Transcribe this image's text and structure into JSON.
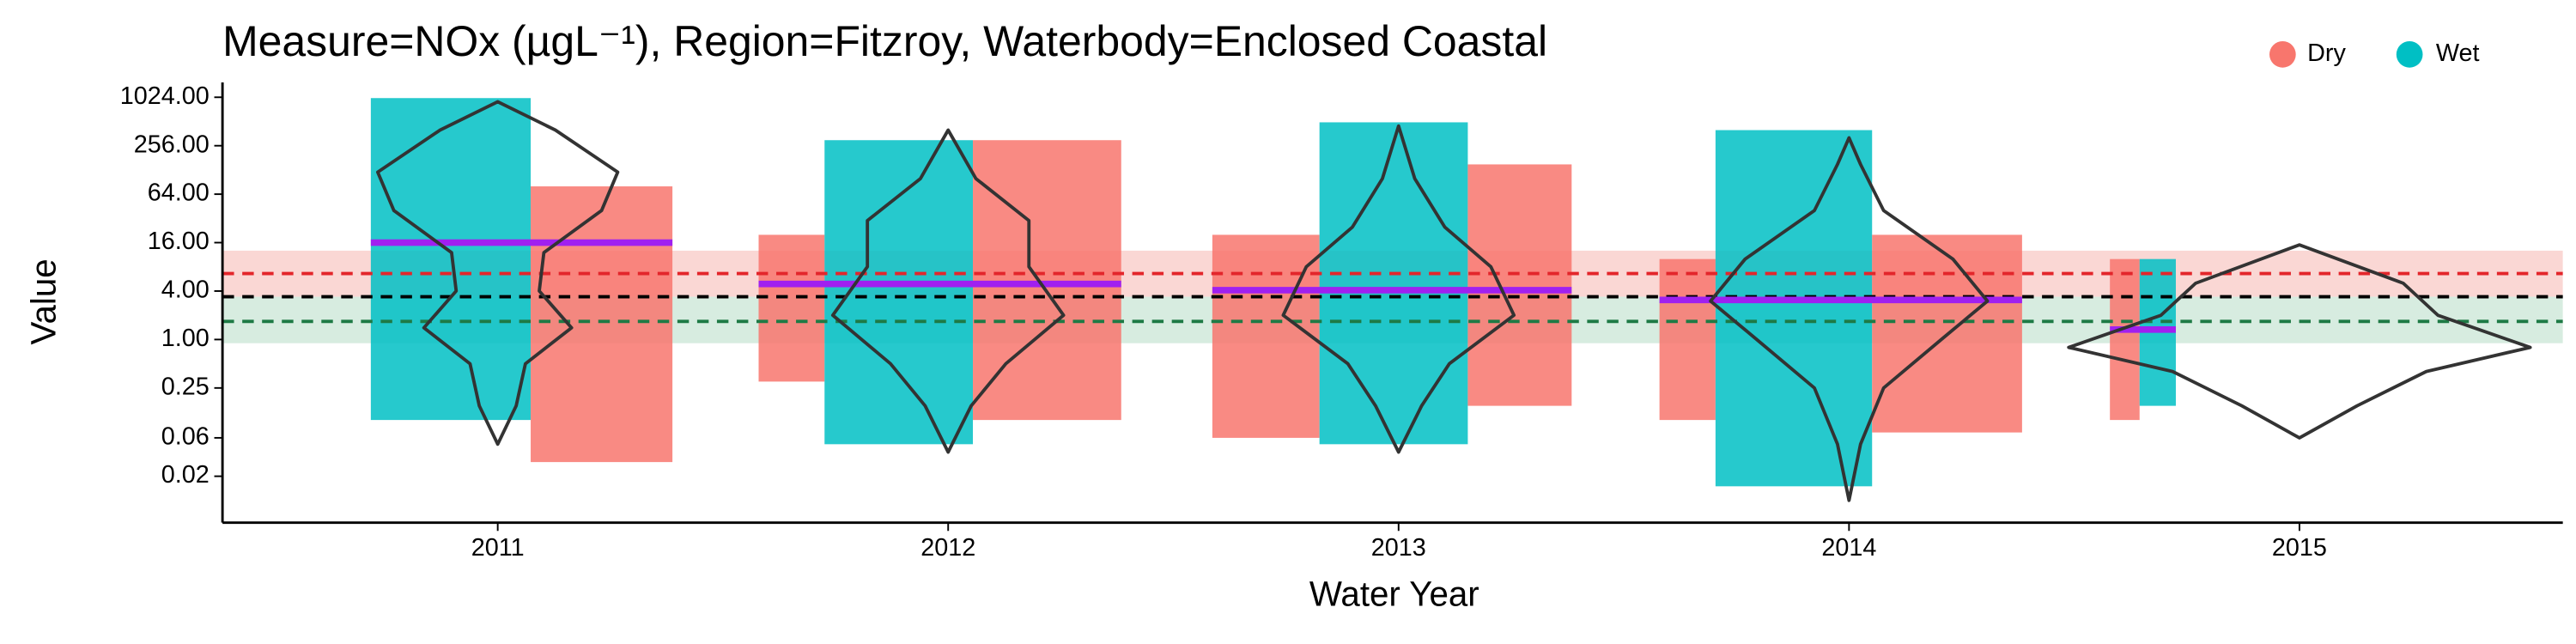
{
  "chart_data": {
    "type": "violin",
    "title": "Measure=NOx (µgL⁻¹), Region=Fitzroy, Waterbody=Enclosed Coastal",
    "x_label": "Water Year",
    "y_label": "Value",
    "categories": [
      "2011",
      "2012",
      "2013",
      "2014",
      "2015"
    ],
    "log_scale": true,
    "ylim": [
      0.0053,
      1565
    ],
    "yticks": [
      {
        "value": 0.02,
        "label": "0.02"
      },
      {
        "value": 0.06,
        "label": "0.06"
      },
      {
        "value": 0.25,
        "label": "0.25"
      },
      {
        "value": 1,
        "label": "1.00"
      },
      {
        "value": 4,
        "label": "4.00"
      },
      {
        "value": 16,
        "label": "16.00"
      },
      {
        "value": 64,
        "label": "64.00"
      },
      {
        "value": 256,
        "label": "256.00"
      },
      {
        "value": 1024,
        "label": "1024.00"
      }
    ],
    "series": [
      {
        "name": "Dry",
        "color": "#F8766D",
        "ranges": [
          [
            [
              0.03,
              80
            ]
          ],
          [
            [
              0.3,
              20
            ],
            [
              0.1,
              300
            ]
          ],
          [
            [
              0.06,
              20
            ],
            [
              0.15,
              150
            ]
          ],
          [
            [
              0.1,
              10
            ],
            [
              0.07,
              20
            ]
          ],
          [
            [
              0.1,
              10
            ]
          ]
        ]
      },
      {
        "name": "Wet",
        "color": "#00BFC4",
        "ranges": [
          [
            [
              0.1,
              1000
            ]
          ],
          [
            [
              0.05,
              300
            ]
          ],
          [
            [
              0.05,
              500
            ]
          ],
          [
            [
              0.015,
              400
            ]
          ],
          [
            [
              0.15,
              10
            ]
          ]
        ]
      }
    ],
    "medians": [
      16,
      4.9,
      4.1,
      3.1,
      1.33
    ],
    "median_color": "#A020F0",
    "violins": [
      {
        "y": [
          0.05,
          0.15,
          0.5,
          1.4,
          4,
          12,
          40,
          120,
          400,
          900
        ],
        "density": [
          0,
          0.08,
          0.12,
          0.32,
          0.18,
          0.2,
          0.45,
          0.52,
          0.25,
          0
        ]
      },
      {
        "y": [
          0.04,
          0.15,
          0.5,
          2,
          8,
          30,
          100,
          400
        ],
        "density": [
          0,
          0.1,
          0.25,
          0.5,
          0.35,
          0.35,
          0.12,
          0
        ]
      },
      {
        "y": [
          0.04,
          0.15,
          0.5,
          2,
          8,
          25,
          100,
          450
        ],
        "density": [
          0,
          0.1,
          0.22,
          0.5,
          0.4,
          0.2,
          0.07,
          0
        ]
      },
      {
        "y": [
          0.01,
          0.05,
          0.25,
          1,
          3,
          10,
          40,
          150,
          320
        ],
        "density": [
          0,
          0.05,
          0.15,
          0.4,
          0.6,
          0.45,
          0.15,
          0.05,
          0
        ]
      },
      {
        "y": [
          0.06,
          0.15,
          0.4,
          0.8,
          2,
          5,
          15
        ],
        "density": [
          0,
          0.25,
          0.55,
          1,
          0.6,
          0.45,
          0
        ]
      }
    ],
    "bands": [
      {
        "low": 3.4,
        "high": 12.7,
        "color": "#F8C9C6"
      },
      {
        "low": 0.9,
        "high": 3.4,
        "color": "#C9E6D6"
      }
    ],
    "reference_lines": [
      {
        "value": 6.6,
        "color": "#E3262B"
      },
      {
        "value": 3.4,
        "color": "#000000"
      },
      {
        "value": 1.68,
        "color": "#1E7A45"
      }
    ],
    "legend_position": "top-right"
  }
}
